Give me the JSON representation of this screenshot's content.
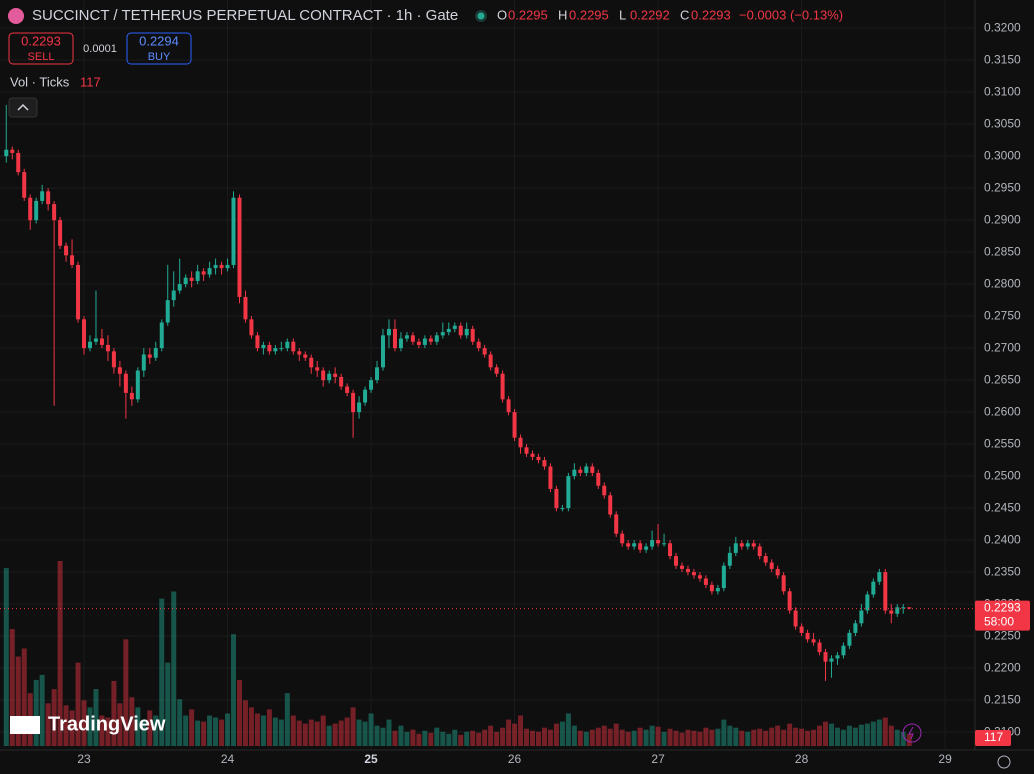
{
  "header": {
    "title": "SUCCINCT / TETHERUS PERPETUAL CONTRACT · 1h · Gate",
    "ohlc": [
      {
        "key": "O",
        "value": "0.2295"
      },
      {
        "key": "H",
        "value": "0.2295"
      },
      {
        "key": "L",
        "value": "0.2292"
      },
      {
        "key": "C",
        "value": "0.2293"
      }
    ],
    "change": "−0.0003 (−0.13%)",
    "sell_price": "0.2293",
    "sell_label": "SELL",
    "spread": "0.0001",
    "buy_price": "0.2294",
    "buy_label": "BUY",
    "volume_indicator": "Vol · Ticks",
    "volume_value": "117",
    "brand": "TradingView"
  },
  "chart_data": {
    "type": "candlestick",
    "colors": {
      "up": "#22ab94",
      "down": "#f23645"
    },
    "grid": true,
    "last_price_label": "0.2293",
    "countdown": "58:00",
    "volume_label": "117",
    "xlim": [
      -14.05,
      149
    ],
    "xticks": [
      {
        "value": 0,
        "label": "23"
      },
      {
        "value": 24,
        "label": "24"
      },
      {
        "value": 48,
        "label": "25"
      },
      {
        "value": 72,
        "label": "26"
      },
      {
        "value": 96,
        "label": "27"
      },
      {
        "value": 120,
        "label": "28"
      },
      {
        "value": 144,
        "label": "29"
      }
    ],
    "ylim": [
      0.2072,
      0.3244
    ],
    "yticks": [
      {
        "value": 0.32,
        "label": "0.3200"
      },
      {
        "value": 0.315,
        "label": "0.3150"
      },
      {
        "value": 0.31,
        "label": "0.3100"
      },
      {
        "value": 0.305,
        "label": "0.3050"
      },
      {
        "value": 0.3,
        "label": "0.3000"
      },
      {
        "value": 0.295,
        "label": "0.2950"
      },
      {
        "value": 0.29,
        "label": "0.2900"
      },
      {
        "value": 0.285,
        "label": "0.2850"
      },
      {
        "value": 0.28,
        "label": "0.2800"
      },
      {
        "value": 0.275,
        "label": "0.2750"
      },
      {
        "value": 0.27,
        "label": "0.2700"
      },
      {
        "value": 0.265,
        "label": "0.2650"
      },
      {
        "value": 0.26,
        "label": "0.2600"
      },
      {
        "value": 0.255,
        "label": "0.2550"
      },
      {
        "value": 0.25,
        "label": "0.2500"
      },
      {
        "value": 0.245,
        "label": "0.2450"
      },
      {
        "value": 0.24,
        "label": "0.2400"
      },
      {
        "value": 0.235,
        "label": "0.2350"
      },
      {
        "value": 0.23,
        "label": "0.2300"
      },
      {
        "value": 0.225,
        "label": "0.2250"
      },
      {
        "value": 0.22,
        "label": "0.2200"
      },
      {
        "value": 0.215,
        "label": "0.2150"
      },
      {
        "value": 0.21,
        "label": "0.2100"
      }
    ],
    "last_price": 0.2293,
    "x": [
      -13,
      -12,
      -11,
      -10,
      -9,
      -8,
      -7,
      -6,
      -5,
      -4,
      -3,
      -2,
      -1,
      0,
      1,
      2,
      3,
      4,
      5,
      6,
      7,
      8,
      9,
      10,
      11,
      12,
      13,
      14,
      15,
      16,
      17,
      18,
      19,
      20,
      21,
      22,
      23,
      24,
      25,
      26,
      27,
      28,
      29,
      30,
      31,
      32,
      33,
      34,
      35,
      36,
      37,
      38,
      39,
      40,
      41,
      42,
      43,
      44,
      45,
      46,
      47,
      48,
      49,
      50,
      51,
      52,
      53,
      54,
      55,
      56,
      57,
      58,
      59,
      60,
      61,
      62,
      63,
      64,
      65,
      66,
      67,
      68,
      69,
      70,
      71,
      72,
      73,
      74,
      75,
      76,
      77,
      78,
      79,
      80,
      81,
      82,
      83,
      84,
      85,
      86,
      87,
      88,
      89,
      90,
      91,
      92,
      93,
      94,
      95,
      96,
      97,
      98,
      99,
      100,
      101,
      102,
      103,
      104,
      105,
      106,
      107,
      108,
      109,
      110,
      111,
      112,
      113,
      114,
      115,
      116,
      117,
      118,
      119,
      120,
      121,
      122,
      123,
      124,
      125,
      126,
      127,
      128,
      129,
      130,
      131,
      132,
      133,
      134,
      135,
      136,
      137,
      138
    ],
    "open": [
      0.3,
      0.301,
      0.3005,
      0.2975,
      0.2935,
      0.29,
      0.293,
      0.2945,
      0.2925,
      0.29,
      0.286,
      0.2845,
      0.283,
      0.2745,
      0.27,
      0.271,
      0.2715,
      0.2705,
      0.2695,
      0.267,
      0.266,
      0.263,
      0.262,
      0.2665,
      0.269,
      0.2685,
      0.27,
      0.274,
      0.2775,
      0.279,
      0.28,
      0.281,
      0.2805,
      0.282,
      0.2815,
      0.2825,
      0.283,
      0.2825,
      0.283,
      0.2935,
      0.278,
      0.2745,
      0.272,
      0.27,
      0.2705,
      0.2695,
      0.27,
      0.27,
      0.271,
      0.2695,
      0.269,
      0.2685,
      0.267,
      0.2665,
      0.265,
      0.266,
      0.2655,
      0.264,
      0.263,
      0.26,
      0.2615,
      0.2635,
      0.265,
      0.267,
      0.272,
      0.273,
      0.27,
      0.2715,
      0.272,
      0.271,
      0.2705,
      0.2715,
      0.271,
      0.272,
      0.2725,
      0.273,
      0.2735,
      0.272,
      0.273,
      0.271,
      0.27,
      0.269,
      0.267,
      0.266,
      0.262,
      0.26,
      0.256,
      0.2545,
      0.2535,
      0.253,
      0.2525,
      0.2515,
      0.248,
      0.245,
      0.245,
      0.25,
      0.251,
      0.2505,
      0.2515,
      0.2505,
      0.2485,
      0.247,
      0.244,
      0.241,
      0.2395,
      0.239,
      0.2395,
      0.2385,
      0.239,
      0.24,
      0.2395,
      0.2395,
      0.2375,
      0.236,
      0.2355,
      0.235,
      0.2345,
      0.234,
      0.233,
      0.232,
      0.2325,
      0.236,
      0.238,
      0.2395,
      0.239,
      0.2395,
      0.239,
      0.2375,
      0.2365,
      0.2355,
      0.2345,
      0.232,
      0.229,
      0.2265,
      0.2255,
      0.2245,
      0.224,
      0.2225,
      0.221,
      0.2215,
      0.222,
      0.2235,
      0.2255,
      0.227,
      0.229,
      0.2315,
      0.2335,
      0.235,
      0.229,
      0.2285,
      0.2295,
      0.2295
    ],
    "high": [
      0.308,
      0.3015,
      0.301,
      0.298,
      0.294,
      0.2935,
      0.2955,
      0.295,
      0.293,
      0.2905,
      0.2865,
      0.287,
      0.2835,
      0.275,
      0.272,
      0.279,
      0.273,
      0.272,
      0.27,
      0.268,
      0.2665,
      0.264,
      0.267,
      0.27,
      0.27,
      0.271,
      0.2745,
      0.283,
      0.282,
      0.284,
      0.2815,
      0.282,
      0.283,
      0.2825,
      0.2835,
      0.284,
      0.2835,
      0.284,
      0.2945,
      0.294,
      0.279,
      0.275,
      0.2725,
      0.271,
      0.271,
      0.2705,
      0.271,
      0.2715,
      0.2715,
      0.27,
      0.2695,
      0.269,
      0.268,
      0.267,
      0.2665,
      0.267,
      0.266,
      0.2645,
      0.2635,
      0.2625,
      0.264,
      0.2655,
      0.268,
      0.273,
      0.2745,
      0.2745,
      0.2725,
      0.2725,
      0.2725,
      0.2715,
      0.272,
      0.272,
      0.2725,
      0.274,
      0.274,
      0.274,
      0.274,
      0.274,
      0.2735,
      0.2715,
      0.2705,
      0.2695,
      0.2675,
      0.2665,
      0.2625,
      0.2605,
      0.2565,
      0.255,
      0.254,
      0.2535,
      0.253,
      0.252,
      0.2485,
      0.2455,
      0.2505,
      0.252,
      0.2515,
      0.252,
      0.252,
      0.251,
      0.249,
      0.2475,
      0.2445,
      0.2415,
      0.24,
      0.24,
      0.24,
      0.2395,
      0.2415,
      0.2425,
      0.241,
      0.24,
      0.238,
      0.2365,
      0.236,
      0.2355,
      0.235,
      0.2345,
      0.2335,
      0.233,
      0.2365,
      0.239,
      0.2405,
      0.24,
      0.24,
      0.24,
      0.2395,
      0.238,
      0.237,
      0.236,
      0.235,
      0.2325,
      0.2295,
      0.227,
      0.226,
      0.2255,
      0.2245,
      0.223,
      0.222,
      0.2225,
      0.224,
      0.226,
      0.2275,
      0.23,
      0.232,
      0.234,
      0.2355,
      0.2355,
      0.23,
      0.23,
      0.23,
      0.2295
    ],
    "low": [
      0.299,
      0.2995,
      0.297,
      0.293,
      0.2885,
      0.2895,
      0.2925,
      0.2915,
      0.261,
      0.2855,
      0.2835,
      0.2825,
      0.274,
      0.269,
      0.2695,
      0.2705,
      0.27,
      0.268,
      0.266,
      0.264,
      0.259,
      0.261,
      0.2615,
      0.2655,
      0.2675,
      0.268,
      0.2695,
      0.2735,
      0.2765,
      0.2785,
      0.2795,
      0.2795,
      0.28,
      0.2805,
      0.281,
      0.2815,
      0.2815,
      0.282,
      0.2825,
      0.277,
      0.274,
      0.2715,
      0.2695,
      0.269,
      0.269,
      0.269,
      0.2695,
      0.2695,
      0.269,
      0.268,
      0.268,
      0.266,
      0.2655,
      0.264,
      0.2645,
      0.2645,
      0.2635,
      0.2625,
      0.256,
      0.259,
      0.261,
      0.263,
      0.2645,
      0.2665,
      0.27,
      0.2695,
      0.2695,
      0.271,
      0.2705,
      0.27,
      0.27,
      0.2705,
      0.2705,
      0.2715,
      0.272,
      0.2725,
      0.2715,
      0.2715,
      0.2705,
      0.2695,
      0.2685,
      0.2665,
      0.2655,
      0.2615,
      0.2595,
      0.2555,
      0.2535,
      0.253,
      0.2525,
      0.252,
      0.251,
      0.2475,
      0.2445,
      0.2445,
      0.2445,
      0.2495,
      0.25,
      0.25,
      0.25,
      0.248,
      0.2465,
      0.2435,
      0.2405,
      0.239,
      0.2385,
      0.2385,
      0.238,
      0.238,
      0.2385,
      0.239,
      0.239,
      0.237,
      0.2355,
      0.235,
      0.2345,
      0.234,
      0.2335,
      0.2325,
      0.2315,
      0.2315,
      0.232,
      0.2355,
      0.2375,
      0.2385,
      0.2385,
      0.2385,
      0.237,
      0.236,
      0.235,
      0.234,
      0.2315,
      0.2285,
      0.226,
      0.225,
      0.224,
      0.2235,
      0.222,
      0.218,
      0.2185,
      0.2205,
      0.2215,
      0.223,
      0.225,
      0.2265,
      0.2285,
      0.231,
      0.233,
      0.2285,
      0.227,
      0.228,
      0.2285,
      0.2292
    ],
    "close": [
      0.301,
      0.3005,
      0.2975,
      0.2935,
      0.29,
      0.293,
      0.2945,
      0.2925,
      0.29,
      0.286,
      0.2845,
      0.283,
      0.2745,
      0.27,
      0.271,
      0.2715,
      0.2705,
      0.2695,
      0.267,
      0.266,
      0.263,
      0.262,
      0.2665,
      0.269,
      0.2685,
      0.27,
      0.274,
      0.2775,
      0.279,
      0.28,
      0.281,
      0.2805,
      0.282,
      0.2815,
      0.2825,
      0.283,
      0.2825,
      0.283,
      0.2935,
      0.278,
      0.2745,
      0.272,
      0.27,
      0.2705,
      0.2695,
      0.27,
      0.27,
      0.271,
      0.2695,
      0.269,
      0.2685,
      0.267,
      0.2665,
      0.265,
      0.266,
      0.2655,
      0.264,
      0.263,
      0.26,
      0.2615,
      0.2635,
      0.265,
      0.267,
      0.272,
      0.273,
      0.27,
      0.2715,
      0.272,
      0.271,
      0.2705,
      0.2715,
      0.271,
      0.272,
      0.2725,
      0.273,
      0.2735,
      0.272,
      0.273,
      0.271,
      0.27,
      0.269,
      0.267,
      0.266,
      0.262,
      0.26,
      0.256,
      0.2545,
      0.2535,
      0.253,
      0.2525,
      0.2515,
      0.248,
      0.245,
      0.245,
      0.25,
      0.251,
      0.2505,
      0.2515,
      0.2505,
      0.2485,
      0.247,
      0.244,
      0.241,
      0.2395,
      0.239,
      0.2395,
      0.2385,
      0.239,
      0.24,
      0.2395,
      0.2395,
      0.2375,
      0.236,
      0.2355,
      0.235,
      0.2345,
      0.234,
      0.233,
      0.232,
      0.2325,
      0.236,
      0.238,
      0.2395,
      0.239,
      0.2395,
      0.239,
      0.2375,
      0.2365,
      0.2355,
      0.2345,
      0.232,
      0.229,
      0.2265,
      0.2255,
      0.2245,
      0.224,
      0.2225,
      0.221,
      0.2215,
      0.222,
      0.2235,
      0.2255,
      0.227,
      0.229,
      0.2315,
      0.2335,
      0.235,
      0.229,
      0.2285,
      0.2295,
      0.2295,
      0.2293
    ],
    "volume": [
      1750,
      1150,
      880,
      960,
      520,
      650,
      700,
      420,
      560,
      1820,
      400,
      350,
      820,
      450,
      380,
      560,
      300,
      280,
      640,
      420,
      1050,
      480,
      380,
      260,
      350,
      300,
      1450,
      820,
      1520,
      460,
      300,
      360,
      250,
      240,
      300,
      280,
      260,
      320,
      1100,
      650,
      450,
      380,
      320,
      300,
      360,
      280,
      260,
      520,
      300,
      250,
      220,
      260,
      240,
      300,
      200,
      220,
      250,
      280,
      380,
      260,
      240,
      320,
      200,
      180,
      260,
      150,
      200,
      140,
      160,
      120,
      150,
      130,
      180,
      140,
      120,
      160,
      110,
      140,
      150,
      130,
      160,
      200,
      140,
      180,
      260,
      220,
      300,
      170,
      150,
      140,
      180,
      160,
      220,
      240,
      320,
      200,
      150,
      140,
      160,
      180,
      200,
      170,
      220,
      160,
      140,
      150,
      180,
      160,
      200,
      190,
      140,
      170,
      150,
      130,
      160,
      150,
      140,
      180,
      160,
      170,
      260,
      200,
      180,
      150,
      140,
      160,
      170,
      150,
      180,
      200,
      160,
      220,
      180,
      170,
      150,
      160,
      200,
      240,
      220,
      180,
      160,
      200,
      180,
      210,
      220,
      240,
      260,
      280,
      200,
      160,
      140,
      117
    ]
  }
}
